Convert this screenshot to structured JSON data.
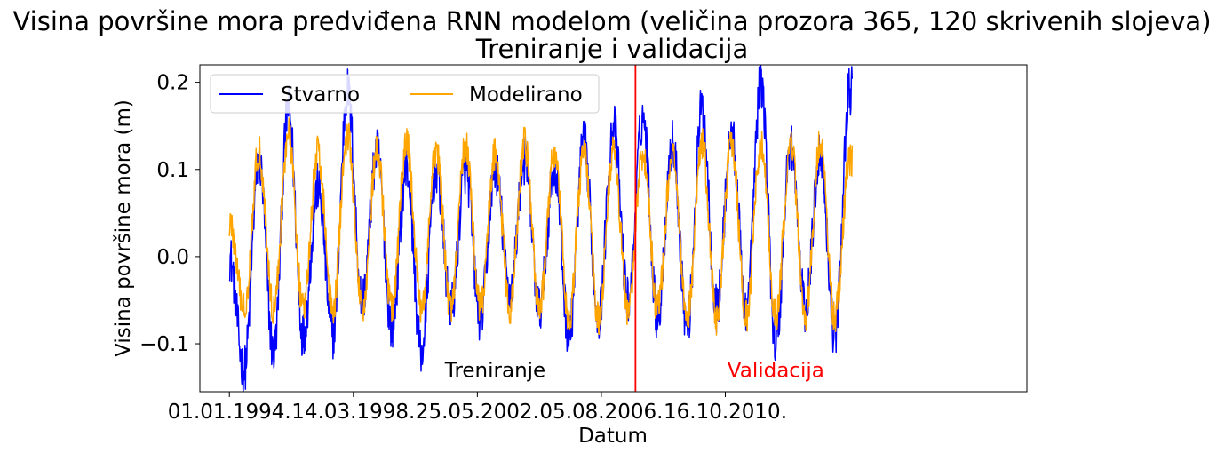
{
  "chart_data": {
    "type": "line",
    "title": "Visina površine mora predviđena RNN modelom (veličina prozora 365, 120 skrivenih slojeva)",
    "subtitle": "Treniranje i validacija",
    "xlabel": "Datum",
    "ylabel": "Visina površine mora (m)",
    "x_range": [
      "1993-01-01",
      "2020-12-31"
    ],
    "ylim": [
      -0.155,
      0.22
    ],
    "x_ticks": [
      {
        "date": "1994-01-01",
        "label": "01.01.1994."
      },
      {
        "date": "1998-03-14",
        "label": "14.03.1998."
      },
      {
        "date": "2002-05-25",
        "label": "25.05.2002."
      },
      {
        "date": "2006-08-05",
        "label": "05.08.2006."
      },
      {
        "date": "2010-10-16",
        "label": "16.10.2010."
      }
    ],
    "y_ticks": [
      {
        "value": -0.1,
        "label": "−0.1"
      },
      {
        "value": 0.0,
        "label": "0.0"
      },
      {
        "value": 0.1,
        "label": "0.1"
      },
      {
        "value": 0.2,
        "label": "0.2"
      }
    ],
    "grid": false,
    "legend": {
      "placement": "top-left",
      "columns": 2
    },
    "split": {
      "date": "2007-10-01",
      "color": "#ff0000"
    },
    "annotations": [
      {
        "text": "Treniranje",
        "date": "2003-01-01",
        "y": -0.13,
        "color": "#000000"
      },
      {
        "text": "Validacija",
        "date": "2012-07-01",
        "y": -0.13,
        "color": "#ff0000"
      }
    ],
    "data_range": [
      "1994-01-01",
      "2015-01-31"
    ],
    "series": [
      {
        "name": "Stvarno",
        "color": "#0000ff",
        "x": [
          "1994-01",
          "1994-07",
          "1995-01",
          "1995-07",
          "1996-01",
          "1996-07",
          "1997-01",
          "1997-07",
          "1998-01",
          "1998-07",
          "1999-01",
          "1999-07",
          "2000-01",
          "2000-07",
          "2001-01",
          "2001-07",
          "2002-01",
          "2002-07",
          "2003-01",
          "2003-07",
          "2004-01",
          "2004-07",
          "2005-01",
          "2005-07",
          "2006-01",
          "2006-07",
          "2007-01",
          "2007-07",
          "2008-01",
          "2008-07",
          "2009-01",
          "2009-07",
          "2010-01",
          "2010-07",
          "2011-01",
          "2011-07",
          "2012-01",
          "2012-07",
          "2013-01",
          "2013-07",
          "2014-01",
          "2014-07",
          "2015-01"
        ],
        "y": [
          0.0,
          -0.13,
          0.11,
          -0.11,
          0.17,
          -0.09,
          0.08,
          -0.09,
          0.19,
          -0.05,
          0.12,
          -0.08,
          0.1,
          -0.11,
          0.1,
          -0.06,
          0.1,
          -0.07,
          0.1,
          -0.04,
          0.11,
          -0.06,
          0.1,
          -0.09,
          0.13,
          -0.07,
          0.15,
          -0.05,
          0.16,
          -0.07,
          0.13,
          -0.08,
          0.17,
          -0.06,
          0.14,
          -0.06,
          0.2,
          -0.1,
          0.13,
          -0.06,
          0.12,
          -0.09,
          0.19
        ]
      },
      {
        "name": "Modelirano",
        "color": "#ffa500",
        "x": [
          "1994-01",
          "1994-07",
          "1995-01",
          "1995-07",
          "1996-01",
          "1996-07",
          "1997-01",
          "1997-07",
          "1998-01",
          "1998-07",
          "1999-01",
          "1999-07",
          "2000-01",
          "2000-07",
          "2001-01",
          "2001-07",
          "2002-01",
          "2002-07",
          "2003-01",
          "2003-07",
          "2004-01",
          "2004-07",
          "2005-01",
          "2005-07",
          "2006-01",
          "2006-07",
          "2007-01",
          "2007-07",
          "2008-01",
          "2008-07",
          "2009-01",
          "2009-07",
          "2010-01",
          "2010-07",
          "2011-01",
          "2011-07",
          "2012-01",
          "2012-07",
          "2013-01",
          "2013-07",
          "2014-01",
          "2014-07",
          "2015-01"
        ],
        "y": [
          0.04,
          -0.06,
          0.12,
          -0.06,
          0.14,
          -0.06,
          0.12,
          -0.06,
          0.14,
          -0.06,
          0.12,
          -0.06,
          0.13,
          -0.06,
          0.12,
          -0.06,
          0.13,
          -0.06,
          0.12,
          -0.06,
          0.13,
          -0.06,
          0.12,
          -0.07,
          0.12,
          -0.07,
          0.12,
          -0.06,
          0.12,
          -0.06,
          0.12,
          -0.07,
          0.13,
          -0.07,
          0.13,
          -0.07,
          0.13,
          -0.07,
          0.13,
          -0.07,
          0.13,
          -0.07,
          0.11
        ]
      }
    ]
  }
}
